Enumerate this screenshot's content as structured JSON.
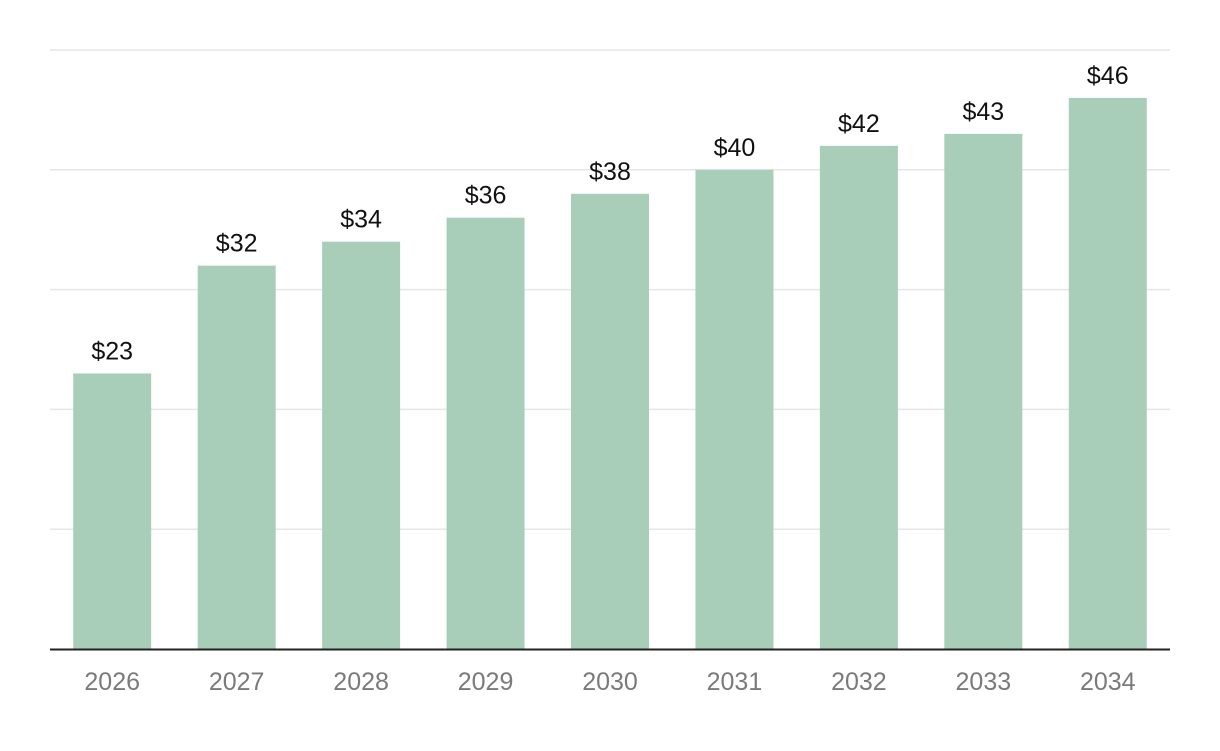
{
  "chart_data": {
    "type": "bar",
    "categories": [
      "2026",
      "2027",
      "2028",
      "2029",
      "2030",
      "2031",
      "2032",
      "2033",
      "2034"
    ],
    "values": [
      23,
      32,
      34,
      36,
      38,
      40,
      42,
      43,
      46
    ],
    "value_labels": [
      "$23",
      "$32",
      "$34",
      "$36",
      "$38",
      "$40",
      "$42",
      "$43",
      "$46"
    ],
    "title": "",
    "xlabel": "",
    "ylabel": "",
    "ylim": [
      0,
      50
    ],
    "y_gridlines": [
      10,
      20,
      30,
      40,
      50
    ],
    "grid": true,
    "y_tick_labels_shown": false,
    "legend": "none",
    "colors": {
      "bar": "#a8cdb8",
      "grid": "#e6e6e6",
      "axis": "#222222",
      "value_label": "#111111",
      "tick_label": "#7a7a7a"
    }
  }
}
